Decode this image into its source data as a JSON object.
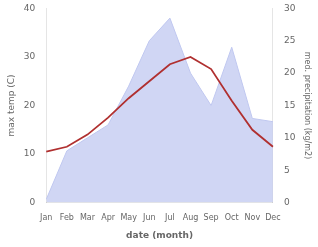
{
  "chart_data": {
    "type": "line",
    "categories": [
      "Jan",
      "Feb",
      "Mar",
      "Apr",
      "May",
      "Jun",
      "Jul",
      "Aug",
      "Sep",
      "Oct",
      "Nov",
      "Dec"
    ],
    "xlabel": "date (month)",
    "ylabel": "max temp (C)",
    "y2label": "med. precipitation (kg/m2)",
    "series": [
      {
        "type": "area",
        "axis": "y2",
        "color": "#c0c8f0",
        "values": [
          0.5,
          8.0,
          10.0,
          12.0,
          18.0,
          25.0,
          28.5,
          20.0,
          15.0,
          24.0,
          13.0,
          12.5
        ]
      },
      {
        "type": "line",
        "color": "#b03030",
        "values": [
          10.5,
          11.5,
          14.0,
          17.5,
          21.5,
          25.0,
          28.5,
          30.0,
          27.5,
          21.0,
          15.0,
          11.5
        ]
      }
    ],
    "ylim": [
      0,
      40
    ],
    "yticks": [
      0,
      10,
      20,
      30,
      40
    ],
    "y2lim": [
      0,
      30
    ],
    "y2ticks": [
      0,
      5,
      10,
      15,
      20,
      25,
      30
    ],
    "grid": false
  }
}
